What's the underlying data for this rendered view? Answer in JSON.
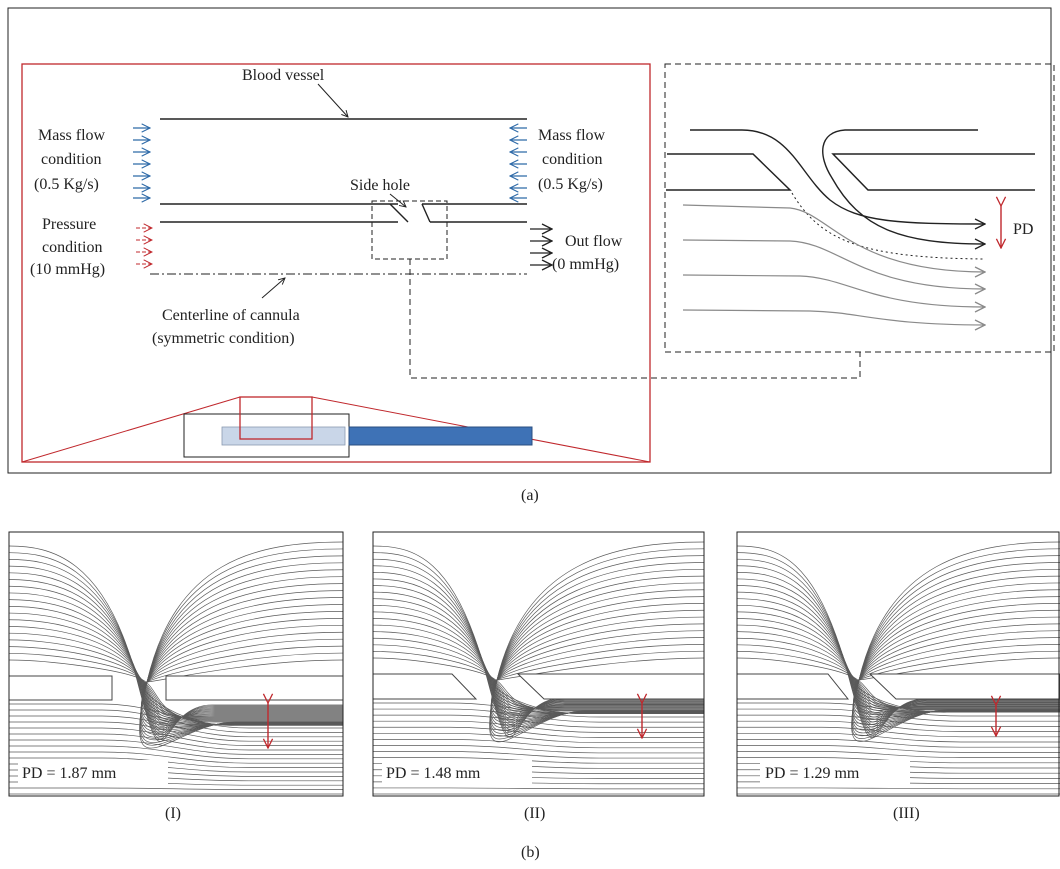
{
  "colors": {
    "ink": "#222222",
    "red": "#c0282d",
    "blue_arrow": "#2e6aa8",
    "vessel_fill": "#c9d6e8",
    "cannula_fill": "#3e72b6",
    "streamline": "#5a5a5a",
    "streamline_light": "#8a8a8a"
  },
  "panel_a": {
    "caption": "(a)",
    "blood_vessel": "Blood vessel",
    "mass_flow_left": [
      "Mass flow",
      "condition",
      "(0.5 Kg/s)"
    ],
    "mass_flow_right": [
      "Mass flow",
      "condition",
      "(0.5 Kg/s)"
    ],
    "side_hole": "Side hole",
    "pressure": [
      "Pressure",
      "condition",
      "(10 mmHg)"
    ],
    "outflow": [
      "Out flow",
      "(0 mmHg)"
    ],
    "centerline": [
      "Centerline of cannula",
      "(symmetric condition)"
    ],
    "pd": "PD"
  },
  "panel_b": {
    "caption": "(b)",
    "cases": [
      {
        "roman": "(I)",
        "pd": "PD = 1.87 mm",
        "pd_mm": 1.87
      },
      {
        "roman": "(II)",
        "pd": "PD = 1.48 mm",
        "pd_mm": 1.48
      },
      {
        "roman": "(III)",
        "pd": "PD = 1.29 mm",
        "pd_mm": 1.29
      }
    ]
  }
}
